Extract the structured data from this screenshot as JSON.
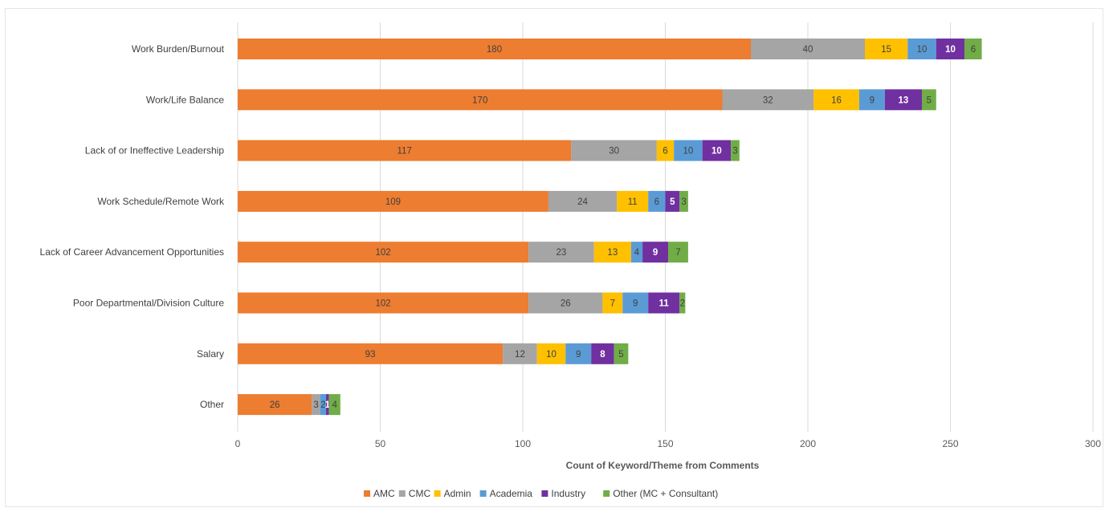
{
  "chart_data": {
    "type": "bar",
    "orientation": "horizontal",
    "stacked": true,
    "categories": [
      "Work Burden/Burnout",
      "Work/Life Balance",
      "Lack of or Ineffective Leadership",
      "Work Schedule/Remote Work",
      "Lack of Career Advancement Opportunities",
      "Poor Departmental/Division Culture",
      "Salary",
      "Other"
    ],
    "series": [
      {
        "name": "AMC",
        "color": "#ED7D31",
        "label_color": "#404040",
        "values": [
          180,
          170,
          117,
          109,
          102,
          102,
          93,
          26
        ]
      },
      {
        "name": "CMC",
        "color": "#A5A5A5",
        "label_color": "#404040",
        "values": [
          40,
          32,
          30,
          24,
          23,
          26,
          12,
          3
        ]
      },
      {
        "name": "Admin",
        "color": "#FFC000",
        "label_color": "#404040",
        "values": [
          15,
          16,
          6,
          11,
          13,
          7,
          10,
          0
        ]
      },
      {
        "name": "Academia",
        "color": "#5B9BD5",
        "label_color": "#404040",
        "values": [
          10,
          9,
          10,
          6,
          4,
          9,
          9,
          2
        ]
      },
      {
        "name": "Industry",
        "color": "#7030A0",
        "label_color": "#ffffff",
        "values": [
          10,
          13,
          10,
          5,
          9,
          11,
          8,
          1
        ]
      },
      {
        "name": "Other (MC + Consultant)",
        "color": "#70AD47",
        "label_color": "#404040",
        "values": [
          6,
          5,
          3,
          3,
          7,
          2,
          5,
          4
        ]
      }
    ],
    "title": "",
    "xlabel": "Count of Keyword/Theme from Comments",
    "ylabel": "",
    "xlim": [
      0,
      300
    ],
    "xticks": [
      0,
      50,
      100,
      150,
      200,
      250,
      300
    ],
    "grid": true,
    "legend_position": "bottom"
  }
}
